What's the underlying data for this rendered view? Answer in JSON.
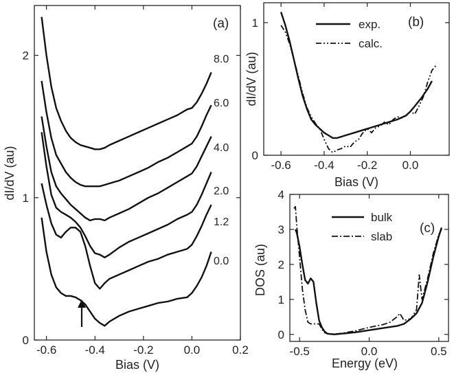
{
  "chart_data": [
    {
      "panel": "(a)",
      "type": "line",
      "xlabel": "Bias (V)",
      "ylabel": "dI/dV (au)",
      "xlim": [
        -0.65,
        0.2
      ],
      "ylim": [
        0,
        2.35
      ],
      "xticks": [
        -0.6,
        -0.4,
        -0.2,
        0.0,
        0.2
      ],
      "xtick_labels": [
        "-0.6",
        "-0.4",
        "-0.2",
        "0.0",
        "0.2"
      ],
      "yticks": [
        0,
        1,
        2
      ],
      "ytick_labels": [
        "0",
        "1",
        "2"
      ],
      "grid": false,
      "series": [
        {
          "name": "0.0",
          "x": [
            -0.62,
            -0.6,
            -0.58,
            -0.56,
            -0.54,
            -0.52,
            -0.5,
            -0.48,
            -0.46,
            -0.44,
            -0.42,
            -0.4,
            -0.38,
            -0.36,
            -0.34,
            -0.3,
            -0.26,
            -0.22,
            -0.18,
            -0.14,
            -0.1,
            -0.06,
            -0.02,
            0.0,
            0.02,
            0.04,
            0.06,
            0.08
          ],
          "y": [
            0.86,
            0.62,
            0.46,
            0.37,
            0.33,
            0.31,
            0.31,
            0.3,
            0.28,
            0.25,
            0.2,
            0.15,
            0.12,
            0.1,
            0.13,
            0.17,
            0.2,
            0.22,
            0.24,
            0.26,
            0.27,
            0.29,
            0.3,
            0.33,
            0.38,
            0.44,
            0.52,
            0.62
          ]
        },
        {
          "name": "1.2",
          "x": [
            -0.62,
            -0.6,
            -0.58,
            -0.56,
            -0.54,
            -0.52,
            -0.5,
            -0.48,
            -0.46,
            -0.44,
            -0.42,
            -0.4,
            -0.38,
            -0.36,
            -0.34,
            -0.3,
            -0.26,
            -0.22,
            -0.18,
            -0.14,
            -0.1,
            -0.06,
            -0.02,
            0.0,
            0.02,
            0.04,
            0.06,
            0.08
          ],
          "y": [
            1.1,
            0.95,
            0.82,
            0.74,
            0.72,
            0.76,
            0.79,
            0.79,
            0.76,
            0.66,
            0.52,
            0.4,
            0.36,
            0.4,
            0.43,
            0.46,
            0.49,
            0.52,
            0.55,
            0.57,
            0.6,
            0.62,
            0.64,
            0.67,
            0.73,
            0.8,
            0.88,
            0.95
          ]
        },
        {
          "name": "2.0",
          "x": [
            -0.62,
            -0.6,
            -0.58,
            -0.56,
            -0.54,
            -0.52,
            -0.5,
            -0.48,
            -0.46,
            -0.44,
            -0.42,
            -0.4,
            -0.38,
            -0.36,
            -0.34,
            -0.3,
            -0.26,
            -0.22,
            -0.18,
            -0.14,
            -0.1,
            -0.06,
            -0.02,
            0.0,
            0.02,
            0.04,
            0.06,
            0.08
          ],
          "y": [
            1.46,
            1.22,
            1.02,
            0.93,
            0.9,
            0.88,
            0.86,
            0.83,
            0.79,
            0.73,
            0.66,
            0.61,
            0.6,
            0.58,
            0.6,
            0.65,
            0.69,
            0.72,
            0.75,
            0.78,
            0.81,
            0.85,
            0.88,
            0.9,
            0.95,
            1.02,
            1.1,
            1.18
          ]
        },
        {
          "name": "4.0",
          "x": [
            -0.62,
            -0.6,
            -0.58,
            -0.56,
            -0.54,
            -0.52,
            -0.5,
            -0.48,
            -0.46,
            -0.44,
            -0.42,
            -0.4,
            -0.38,
            -0.36,
            -0.34,
            -0.3,
            -0.26,
            -0.22,
            -0.18,
            -0.14,
            -0.1,
            -0.06,
            -0.02,
            0.0,
            0.02,
            0.04,
            0.06,
            0.08
          ],
          "y": [
            1.57,
            1.36,
            1.18,
            1.08,
            1.03,
            0.99,
            0.95,
            0.92,
            0.89,
            0.86,
            0.84,
            0.85,
            0.85,
            0.84,
            0.86,
            0.89,
            0.92,
            0.96,
            1.0,
            1.03,
            1.07,
            1.11,
            1.15,
            1.17,
            1.22,
            1.29,
            1.36,
            1.43
          ]
        },
        {
          "name": "6.0",
          "x": [
            -0.62,
            -0.6,
            -0.58,
            -0.56,
            -0.54,
            -0.52,
            -0.5,
            -0.48,
            -0.46,
            -0.44,
            -0.42,
            -0.4,
            -0.38,
            -0.36,
            -0.34,
            -0.3,
            -0.26,
            -0.22,
            -0.18,
            -0.14,
            -0.1,
            -0.06,
            -0.02,
            0.0,
            0.02,
            0.04,
            0.06,
            0.08
          ],
          "y": [
            1.82,
            1.6,
            1.42,
            1.3,
            1.24,
            1.18,
            1.14,
            1.11,
            1.09,
            1.08,
            1.08,
            1.08,
            1.08,
            1.09,
            1.1,
            1.12,
            1.15,
            1.18,
            1.21,
            1.25,
            1.28,
            1.32,
            1.36,
            1.38,
            1.43,
            1.5,
            1.58,
            1.65
          ]
        },
        {
          "name": "8.0",
          "x": [
            -0.62,
            -0.6,
            -0.58,
            -0.56,
            -0.54,
            -0.52,
            -0.5,
            -0.48,
            -0.46,
            -0.44,
            -0.42,
            -0.4,
            -0.38,
            -0.36,
            -0.34,
            -0.3,
            -0.26,
            -0.22,
            -0.18,
            -0.14,
            -0.1,
            -0.06,
            -0.02,
            0.0,
            0.02,
            0.04,
            0.06,
            0.08
          ],
          "y": [
            2.27,
            2.0,
            1.78,
            1.63,
            1.54,
            1.47,
            1.42,
            1.39,
            1.37,
            1.36,
            1.35,
            1.34,
            1.34,
            1.35,
            1.37,
            1.4,
            1.43,
            1.46,
            1.49,
            1.52,
            1.55,
            1.58,
            1.62,
            1.63,
            1.67,
            1.73,
            1.8,
            1.88
          ]
        }
      ],
      "annotation": "arrow pointing up at about -0.48 V"
    },
    {
      "panel": "(b)",
      "type": "line",
      "xlabel": "Bias (V)",
      "ylabel": "dI/dV (au)",
      "xlim": [
        -0.68,
        0.18
      ],
      "ylim": [
        0,
        1.15
      ],
      "xticks": [
        -0.6,
        -0.4,
        -0.2,
        0.0
      ],
      "xtick_labels": [
        "-0.6",
        "-0.4",
        "-0.2",
        "0.0"
      ],
      "yticks": [
        0,
        1
      ],
      "ytick_labels": [
        "0",
        "1"
      ],
      "legend": "top-right",
      "series": [
        {
          "name": "exp.",
          "style": "solid",
          "x": [
            -0.6,
            -0.58,
            -0.56,
            -0.54,
            -0.52,
            -0.5,
            -0.48,
            -0.46,
            -0.44,
            -0.42,
            -0.4,
            -0.38,
            -0.36,
            -0.34,
            -0.32,
            -0.3,
            -0.26,
            -0.22,
            -0.18,
            -0.14,
            -0.1,
            -0.06,
            -0.02,
            0.0,
            0.02,
            0.05,
            0.08,
            0.1
          ],
          "y": [
            1.08,
            0.98,
            0.86,
            0.72,
            0.58,
            0.45,
            0.35,
            0.27,
            0.23,
            0.2,
            0.17,
            0.15,
            0.13,
            0.13,
            0.14,
            0.15,
            0.17,
            0.19,
            0.21,
            0.23,
            0.25,
            0.27,
            0.3,
            0.33,
            0.37,
            0.43,
            0.5,
            0.56
          ]
        },
        {
          "name": "calc.",
          "style": "dash-dot-dot",
          "x": [
            -0.6,
            -0.58,
            -0.56,
            -0.54,
            -0.52,
            -0.5,
            -0.48,
            -0.46,
            -0.44,
            -0.42,
            -0.4,
            -0.38,
            -0.36,
            -0.34,
            -0.32,
            -0.3,
            -0.28,
            -0.26,
            -0.24,
            -0.22,
            -0.2,
            -0.18,
            -0.16,
            -0.14,
            -0.12,
            -0.1,
            -0.08,
            -0.06,
            -0.04,
            -0.02,
            0.0,
            0.02,
            0.04,
            0.06,
            0.08,
            0.1,
            0.12
          ],
          "y": [
            0.98,
            0.93,
            0.84,
            0.72,
            0.6,
            0.47,
            0.36,
            0.29,
            0.24,
            0.2,
            0.12,
            0.05,
            0.02,
            0.04,
            0.05,
            0.07,
            0.06,
            0.1,
            0.12,
            0.17,
            0.2,
            0.17,
            0.21,
            0.22,
            0.25,
            0.23,
            0.27,
            0.29,
            0.28,
            0.3,
            0.33,
            0.31,
            0.37,
            0.44,
            0.55,
            0.64,
            0.68
          ]
        }
      ]
    },
    {
      "panel": "(c)",
      "type": "line",
      "xlabel": "Energy (eV)",
      "ylabel": "DOS (au)",
      "xlim": [
        -0.57,
        0.57
      ],
      "ylim": [
        -0.2,
        4.0
      ],
      "xticks": [
        -0.5,
        0.0,
        0.5
      ],
      "xtick_labels": [
        "-0.5",
        "0.0",
        "0.5"
      ],
      "yticks": [
        0,
        1,
        2,
        3,
        4
      ],
      "ytick_labels": [
        "0",
        "1",
        "2",
        "3",
        "4"
      ],
      "legend": "top-right",
      "series": [
        {
          "name": "bulk",
          "style": "solid",
          "x": [
            -0.53,
            -0.52,
            -0.5,
            -0.48,
            -0.46,
            -0.44,
            -0.42,
            -0.4,
            -0.38,
            -0.36,
            -0.34,
            -0.32,
            -0.3,
            -0.25,
            -0.2,
            -0.1,
            0.0,
            0.1,
            0.2,
            0.25,
            0.3,
            0.34,
            0.38,
            0.42,
            0.46,
            0.5,
            0.52
          ],
          "y": [
            3.0,
            2.9,
            2.5,
            2.0,
            1.55,
            1.45,
            1.6,
            1.5,
            0.9,
            0.4,
            0.2,
            0.08,
            0.02,
            0.0,
            0.02,
            0.06,
            0.12,
            0.18,
            0.24,
            0.3,
            0.45,
            0.6,
            0.9,
            1.5,
            2.2,
            2.8,
            3.05
          ]
        },
        {
          "name": "slab",
          "style": "dash-dot",
          "x": [
            -0.54,
            -0.53,
            -0.52,
            -0.5,
            -0.48,
            -0.46,
            -0.44,
            -0.42,
            -0.4,
            -0.38,
            -0.36,
            -0.34,
            -0.32,
            -0.3,
            -0.25,
            -0.2,
            -0.1,
            0.0,
            0.1,
            0.15,
            0.2,
            0.22,
            0.25,
            0.3,
            0.34,
            0.36,
            0.38,
            0.42,
            0.46,
            0.5,
            0.52
          ],
          "y": [
            3.6,
            3.65,
            3.1,
            2.2,
            1.3,
            0.7,
            0.35,
            0.3,
            0.3,
            0.3,
            0.3,
            0.15,
            0.05,
            0.02,
            0.01,
            0.03,
            0.1,
            0.2,
            0.28,
            0.35,
            0.5,
            0.6,
            0.4,
            0.45,
            0.7,
            1.7,
            1.0,
            1.6,
            2.3,
            2.85,
            3.0
          ]
        }
      ]
    }
  ],
  "panels": {
    "a": {
      "tag": "(a)",
      "xlabel": "Bias (V)",
      "ylabel": "dI/dV (au)",
      "curve_labels": [
        "8.0",
        "6.0",
        "4.0",
        "2.0",
        "1.2",
        "0.0"
      ]
    },
    "b": {
      "tag": "(b)",
      "xlabel": "Bias (V)",
      "ylabel": "dI/dV (au)",
      "legend": [
        "exp.",
        "calc."
      ]
    },
    "c": {
      "tag": "(c)",
      "xlabel": "Energy (eV)",
      "ylabel": "DOS (au)",
      "legend": [
        "bulk",
        "slab"
      ]
    }
  }
}
